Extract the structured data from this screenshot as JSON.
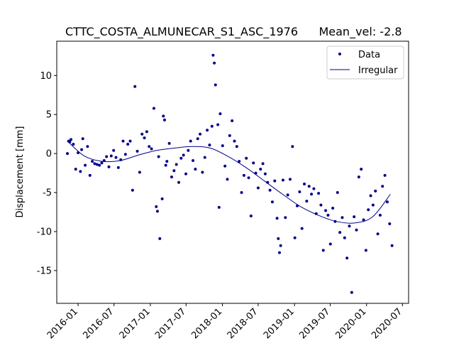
{
  "chart_data": {
    "type": "scatter",
    "title_left": "CTTC_COSTA_ALMUNECAR_S1_ASC_1976",
    "title_right": "Mean_vel: -2.8",
    "xlabel": "",
    "ylabel": "Displacement [mm]",
    "x_range": [
      "2015-09-15",
      "2020-08-01"
    ],
    "ylim": [
      -19.2,
      14.4
    ],
    "x_ticks": [
      "2016-01",
      "2016-07",
      "2017-01",
      "2017-07",
      "2018-01",
      "2018-07",
      "2019-01",
      "2019-07",
      "2020-01",
      "2020-07"
    ],
    "y_ticks": [
      10,
      5,
      0,
      -5,
      -10,
      -15
    ],
    "grid": false,
    "legend_position": "top-right",
    "series": [
      {
        "name": "Data",
        "kind": "scatter",
        "color": "#00008b",
        "points": [
          [
            "2015-11-08",
            0.0
          ],
          [
            "2015-11-14",
            1.6
          ],
          [
            "2015-11-20",
            1.5
          ],
          [
            "2015-11-26",
            1.8
          ],
          [
            "2015-12-08",
            1.2
          ],
          [
            "2015-12-20",
            -2.0
          ],
          [
            "2016-01-01",
            0.1
          ],
          [
            "2016-01-13",
            -2.3
          ],
          [
            "2016-01-19",
            0.5
          ],
          [
            "2016-01-25",
            1.9
          ],
          [
            "2016-02-06",
            -1.5
          ],
          [
            "2016-02-18",
            0.9
          ],
          [
            "2016-03-01",
            -2.8
          ],
          [
            "2016-03-13",
            -1.0
          ],
          [
            "2016-03-25",
            -1.3
          ],
          [
            "2016-04-06",
            -1.4
          ],
          [
            "2016-04-18",
            -1.5
          ],
          [
            "2016-04-30",
            -1.2
          ],
          [
            "2016-05-12",
            -0.9
          ],
          [
            "2016-05-24",
            -0.4
          ],
          [
            "2016-06-05",
            -1.7
          ],
          [
            "2016-06-17",
            -0.3
          ],
          [
            "2016-06-29",
            0.4
          ],
          [
            "2016-07-11",
            -0.5
          ],
          [
            "2016-07-23",
            -1.8
          ],
          [
            "2016-08-04",
            -0.8
          ],
          [
            "2016-08-16",
            1.6
          ],
          [
            "2016-08-28",
            -0.1
          ],
          [
            "2016-09-09",
            1.2
          ],
          [
            "2016-09-21",
            1.6
          ],
          [
            "2016-10-03",
            -4.7
          ],
          [
            "2016-10-15",
            8.6
          ],
          [
            "2016-10-27",
            0.3
          ],
          [
            "2016-11-08",
            -2.4
          ],
          [
            "2016-11-20",
            2.5
          ],
          [
            "2016-12-02",
            2.0
          ],
          [
            "2016-12-14",
            2.8
          ],
          [
            "2016-12-26",
            0.9
          ],
          [
            "2017-01-07",
            0.6
          ],
          [
            "2017-01-19",
            5.8
          ],
          [
            "2017-01-31",
            -6.8
          ],
          [
            "2017-02-06",
            -7.4
          ],
          [
            "2017-02-12",
            -0.4
          ],
          [
            "2017-02-18",
            -10.9
          ],
          [
            "2017-03-02",
            -5.8
          ],
          [
            "2017-03-08",
            4.8
          ],
          [
            "2017-03-14",
            4.3
          ],
          [
            "2017-03-20",
            -1.5
          ],
          [
            "2017-03-26",
            -1.0
          ],
          [
            "2017-04-07",
            1.3
          ],
          [
            "2017-04-19",
            -3.0
          ],
          [
            "2017-05-01",
            -2.2
          ],
          [
            "2017-05-13",
            -1.4
          ],
          [
            "2017-05-25",
            -3.7
          ],
          [
            "2017-06-06",
            -0.6
          ],
          [
            "2017-06-18",
            -0.2
          ],
          [
            "2017-06-30",
            -2.6
          ],
          [
            "2017-07-12",
            0.4
          ],
          [
            "2017-07-24",
            1.6
          ],
          [
            "2017-08-05",
            -0.9
          ],
          [
            "2017-08-17",
            -2.0
          ],
          [
            "2017-08-29",
            1.9
          ],
          [
            "2017-09-10",
            2.5
          ],
          [
            "2017-09-22",
            -2.4
          ],
          [
            "2017-10-04",
            -0.5
          ],
          [
            "2017-10-16",
            3.0
          ],
          [
            "2017-10-28",
            1.1
          ],
          [
            "2017-11-09",
            3.5
          ],
          [
            "2017-11-15",
            12.6
          ],
          [
            "2017-11-21",
            11.6
          ],
          [
            "2017-11-27",
            8.8
          ],
          [
            "2017-12-09",
            3.7
          ],
          [
            "2017-12-15",
            -6.9
          ],
          [
            "2017-12-21",
            5.1
          ],
          [
            "2018-01-02",
            1.0
          ],
          [
            "2018-01-14",
            -1.6
          ],
          [
            "2018-01-26",
            -3.3
          ],
          [
            "2018-02-07",
            2.3
          ],
          [
            "2018-02-19",
            4.2
          ],
          [
            "2018-03-03",
            1.6
          ],
          [
            "2018-03-15",
            0.9
          ],
          [
            "2018-03-27",
            -1.0
          ],
          [
            "2018-04-08",
            -5.0
          ],
          [
            "2018-04-20",
            -2.8
          ],
          [
            "2018-05-02",
            -0.6
          ],
          [
            "2018-05-14",
            -3.1
          ],
          [
            "2018-05-26",
            -8.0
          ],
          [
            "2018-06-07",
            -1.2
          ],
          [
            "2018-06-19",
            -2.5
          ],
          [
            "2018-07-01",
            -4.4
          ],
          [
            "2018-07-13",
            -2.0
          ],
          [
            "2018-07-25",
            -1.3
          ],
          [
            "2018-08-06",
            -2.6
          ],
          [
            "2018-08-18",
            -3.7
          ],
          [
            "2018-08-30",
            -4.7
          ],
          [
            "2018-09-11",
            -6.2
          ],
          [
            "2018-09-23",
            -3.5
          ],
          [
            "2018-10-05",
            -8.3
          ],
          [
            "2018-10-11",
            -10.9
          ],
          [
            "2018-10-17",
            -12.7
          ],
          [
            "2018-10-23",
            -11.8
          ],
          [
            "2018-11-04",
            -3.4
          ],
          [
            "2018-11-16",
            -8.2
          ],
          [
            "2018-11-28",
            -5.3
          ],
          [
            "2018-12-10",
            -3.3
          ],
          [
            "2018-12-22",
            0.9
          ],
          [
            "2019-01-03",
            -10.8
          ],
          [
            "2019-01-15",
            -6.7
          ],
          [
            "2019-01-27",
            -4.9
          ],
          [
            "2019-02-08",
            -9.6
          ],
          [
            "2019-02-20",
            -3.9
          ],
          [
            "2019-03-04",
            -6.1
          ],
          [
            "2019-03-16",
            -4.2
          ],
          [
            "2019-03-28",
            -5.2
          ],
          [
            "2019-04-09",
            -4.5
          ],
          [
            "2019-04-21",
            -7.7
          ],
          [
            "2019-05-03",
            -5.1
          ],
          [
            "2019-05-15",
            -6.6
          ],
          [
            "2019-05-27",
            -12.4
          ],
          [
            "2019-06-08",
            -7.3
          ],
          [
            "2019-06-20",
            -7.9
          ],
          [
            "2019-07-02",
            -11.6
          ],
          [
            "2019-07-14",
            -7.0
          ],
          [
            "2019-07-26",
            -8.7
          ],
          [
            "2019-08-07",
            -5.0
          ],
          [
            "2019-08-19",
            -10.1
          ],
          [
            "2019-08-31",
            -8.2
          ],
          [
            "2019-09-12",
            -10.8
          ],
          [
            "2019-09-24",
            -13.4
          ],
          [
            "2019-10-06",
            -9.3
          ],
          [
            "2019-10-18",
            -17.8
          ],
          [
            "2019-10-30",
            -8.1
          ],
          [
            "2019-11-11",
            -9.8
          ],
          [
            "2019-11-23",
            -3.0
          ],
          [
            "2019-12-05",
            -2.0
          ],
          [
            "2019-12-17",
            -8.5
          ],
          [
            "2019-12-29",
            -12.4
          ],
          [
            "2020-01-10",
            -7.2
          ],
          [
            "2020-01-22",
            -5.4
          ],
          [
            "2020-02-03",
            -6.6
          ],
          [
            "2020-02-15",
            -4.8
          ],
          [
            "2020-02-27",
            -10.3
          ],
          [
            "2020-03-10",
            -7.9
          ],
          [
            "2020-03-22",
            -4.2
          ],
          [
            "2020-04-03",
            -2.8
          ],
          [
            "2020-04-15",
            -6.2
          ],
          [
            "2020-04-27",
            -9.0
          ],
          [
            "2020-05-09",
            -11.8
          ]
        ]
      },
      {
        "name": "Irregular",
        "kind": "line",
        "color": "#00008b",
        "points": [
          [
            "2015-11-08",
            1.6
          ],
          [
            "2016-02-01",
            -0.3
          ],
          [
            "2016-05-01",
            -1.0
          ],
          [
            "2016-08-01",
            -0.9
          ],
          [
            "2016-11-01",
            -0.2
          ],
          [
            "2017-02-01",
            0.4
          ],
          [
            "2017-05-01",
            0.7
          ],
          [
            "2017-08-01",
            0.9
          ],
          [
            "2017-11-01",
            0.7
          ],
          [
            "2018-02-01",
            -0.4
          ],
          [
            "2018-05-01",
            -1.8
          ],
          [
            "2018-08-01",
            -3.5
          ],
          [
            "2018-11-01",
            -5.2
          ],
          [
            "2019-02-01",
            -6.8
          ],
          [
            "2019-05-01",
            -7.9
          ],
          [
            "2019-08-01",
            -8.7
          ],
          [
            "2019-11-01",
            -8.9
          ],
          [
            "2020-02-01",
            -8.1
          ],
          [
            "2020-05-01",
            -5.2
          ]
        ]
      }
    ]
  }
}
